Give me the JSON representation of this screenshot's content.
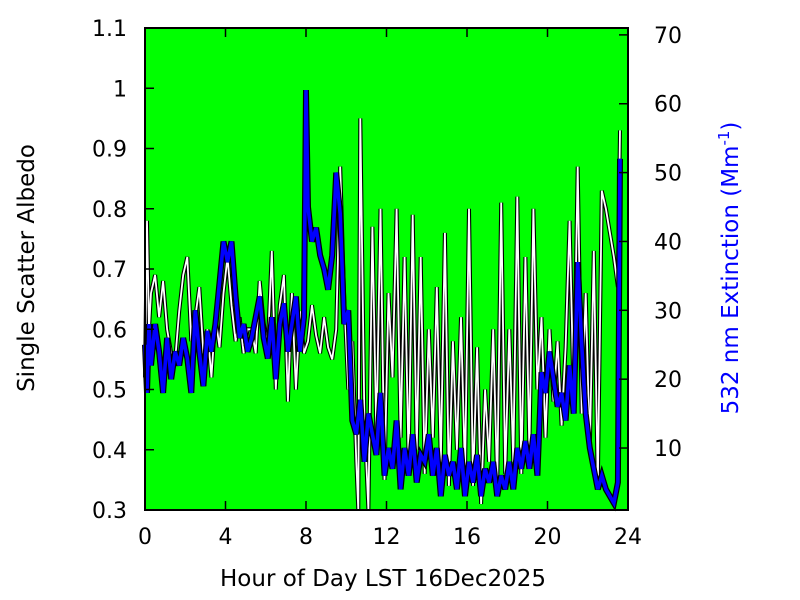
{
  "chart_data": {
    "type": "line",
    "xlabel": "Hour of Day LST 16Dec2025",
    "ylabel": "Single Scatter Albedo",
    "y2label_main": "532 nm Extinction (Mm",
    "y2label_sup": "-1",
    "y2label_close": ")",
    "xlim": [
      0,
      24
    ],
    "ylim": [
      0.3,
      1.1
    ],
    "y2lim": [
      1,
      71
    ],
    "xticks": [
      0,
      4,
      8,
      12,
      16,
      20,
      24
    ],
    "xtick_labels": [
      "0",
      "4",
      "8",
      "12",
      "16",
      "20",
      "24"
    ],
    "yticks": [
      0.3,
      0.4,
      0.5,
      0.6,
      0.7,
      0.8,
      0.9,
      1.0,
      1.1
    ],
    "ytick_labels": [
      "0.3",
      "0.4",
      "0.5",
      "0.6",
      "0.7",
      "0.8",
      "0.9",
      "1",
      "1.1"
    ],
    "y2ticks": [
      10,
      20,
      30,
      40,
      50,
      60,
      70
    ],
    "y2tick_labels": [
      "10",
      "20",
      "30",
      "40",
      "50",
      "60",
      "70"
    ],
    "background_color": "#00ff00",
    "series": [
      {
        "axis": "left",
        "color": "#ffffff",
        "x": [
          0.0,
          0.1,
          0.2,
          0.3,
          0.5,
          0.7,
          0.9,
          1.1,
          1.3,
          1.5,
          1.7,
          1.9,
          2.1,
          2.3,
          2.5,
          2.7,
          2.9,
          3.1,
          3.3,
          3.5,
          3.7,
          3.9,
          4.1,
          4.3,
          4.5,
          4.7,
          4.9,
          5.1,
          5.3,
          5.5,
          5.7,
          5.9,
          6.1,
          6.3,
          6.5,
          6.7,
          6.9,
          7.1,
          7.3,
          7.5,
          7.7,
          7.9,
          8.1,
          8.3,
          8.5,
          8.7,
          8.9,
          9.1,
          9.3,
          9.5,
          9.7,
          9.9,
          10.1,
          10.3,
          10.5,
          10.6,
          10.7,
          10.9,
          11.1,
          11.3,
          11.5,
          11.7,
          11.9,
          12.1,
          12.3,
          12.5,
          12.7,
          12.9,
          13.1,
          13.3,
          13.5,
          13.7,
          13.9,
          14.1,
          14.3,
          14.5,
          14.7,
          14.9,
          15.1,
          15.3,
          15.5,
          15.7,
          15.9,
          16.1,
          16.3,
          16.5,
          16.7,
          16.9,
          17.1,
          17.3,
          17.5,
          17.7,
          17.9,
          18.1,
          18.3,
          18.5,
          18.7,
          18.9,
          19.1,
          19.3,
          19.5,
          19.7,
          19.9,
          20.1,
          20.3,
          20.5,
          20.7,
          20.9,
          21.1,
          21.3,
          21.5,
          21.7,
          21.9,
          22.1,
          22.3,
          22.5,
          22.7,
          22.9,
          23.1,
          23.3,
          23.5,
          23.6
        ],
        "values": [
          0.52,
          0.78,
          0.6,
          0.66,
          0.69,
          0.62,
          0.68,
          0.6,
          0.56,
          0.55,
          0.63,
          0.69,
          0.72,
          0.58,
          0.62,
          0.67,
          0.56,
          0.6,
          0.52,
          0.62,
          0.57,
          0.66,
          0.72,
          0.64,
          0.58,
          0.62,
          0.56,
          0.6,
          0.6,
          0.56,
          0.68,
          0.61,
          0.57,
          0.73,
          0.5,
          0.64,
          0.69,
          0.48,
          0.66,
          0.5,
          0.63,
          0.56,
          0.58,
          0.64,
          0.59,
          0.56,
          0.62,
          0.57,
          0.55,
          0.6,
          0.87,
          0.65,
          0.5,
          0.58,
          0.38,
          0.3,
          0.95,
          0.45,
          0.3,
          0.77,
          0.42,
          0.8,
          0.35,
          0.66,
          0.52,
          0.8,
          0.42,
          0.72,
          0.38,
          0.79,
          0.4,
          0.72,
          0.36,
          0.6,
          0.42,
          0.67,
          0.38,
          0.76,
          0.34,
          0.58,
          0.4,
          0.62,
          0.36,
          0.8,
          0.34,
          0.57,
          0.31,
          0.5,
          0.38,
          0.6,
          0.34,
          0.81,
          0.36,
          0.6,
          0.38,
          0.82,
          0.36,
          0.72,
          0.4,
          0.8,
          0.5,
          0.62,
          0.42,
          0.6,
          0.48,
          0.58,
          0.44,
          0.57,
          0.78,
          0.48,
          0.87,
          0.46,
          0.66,
          0.4,
          0.73,
          0.34,
          0.83,
          0.8,
          0.76,
          0.72,
          0.67,
          0.93
        ]
      },
      {
        "axis": "right",
        "color": "#0000ff",
        "x": [
          0.0,
          0.1,
          0.2,
          0.3,
          0.5,
          0.7,
          0.9,
          1.1,
          1.3,
          1.5,
          1.7,
          1.9,
          2.1,
          2.3,
          2.5,
          2.7,
          2.9,
          3.1,
          3.3,
          3.5,
          3.7,
          3.9,
          4.1,
          4.3,
          4.5,
          4.7,
          4.9,
          5.1,
          5.3,
          5.5,
          5.7,
          5.9,
          6.1,
          6.3,
          6.5,
          6.7,
          6.9,
          7.1,
          7.3,
          7.5,
          7.7,
          7.9,
          8.0,
          8.1,
          8.3,
          8.5,
          8.7,
          8.9,
          9.1,
          9.3,
          9.5,
          9.7,
          9.9,
          10.1,
          10.3,
          10.5,
          10.7,
          10.9,
          11.1,
          11.3,
          11.5,
          11.7,
          11.9,
          12.1,
          12.3,
          12.5,
          12.7,
          12.9,
          13.1,
          13.3,
          13.5,
          13.7,
          13.9,
          14.1,
          14.3,
          14.5,
          14.7,
          14.9,
          15.1,
          15.3,
          15.5,
          15.7,
          15.9,
          16.1,
          16.3,
          16.5,
          16.7,
          16.9,
          17.1,
          17.3,
          17.5,
          17.7,
          17.9,
          18.1,
          18.3,
          18.5,
          18.7,
          18.9,
          19.1,
          19.3,
          19.5,
          19.7,
          19.9,
          20.1,
          20.3,
          20.5,
          20.7,
          20.9,
          21.1,
          21.3,
          21.5,
          21.7,
          21.9,
          22.1,
          22.3,
          22.5,
          22.7,
          22.9,
          23.1,
          23.3,
          23.5,
          23.6
        ],
        "values": [
          25,
          18,
          28,
          22,
          28,
          24,
          18,
          26,
          20,
          24,
          22,
          26,
          23,
          18,
          30,
          24,
          19,
          27,
          24,
          28,
          34,
          40,
          37,
          40,
          32,
          26,
          28,
          24,
          26,
          29,
          32,
          26,
          23,
          29,
          20,
          28,
          31,
          24,
          28,
          32,
          24,
          29,
          62,
          45,
          40,
          42,
          38,
          36,
          33,
          38,
          50,
          44,
          28,
          30,
          14,
          12,
          17,
          8,
          15,
          12,
          9,
          18,
          6,
          10,
          7,
          14,
          4,
          10,
          6,
          12,
          5,
          9,
          8,
          12,
          6,
          10,
          3,
          9,
          6,
          8,
          4,
          10,
          3,
          8,
          5,
          9,
          3,
          7,
          5,
          8,
          3,
          6,
          4,
          8,
          4,
          10,
          7,
          11,
          7,
          12,
          6,
          21,
          18,
          24,
          20,
          16,
          18,
          14,
          22,
          15,
          37,
          25,
          15,
          10,
          7,
          4,
          6,
          4,
          3,
          2,
          5,
          52
        ]
      }
    ]
  }
}
